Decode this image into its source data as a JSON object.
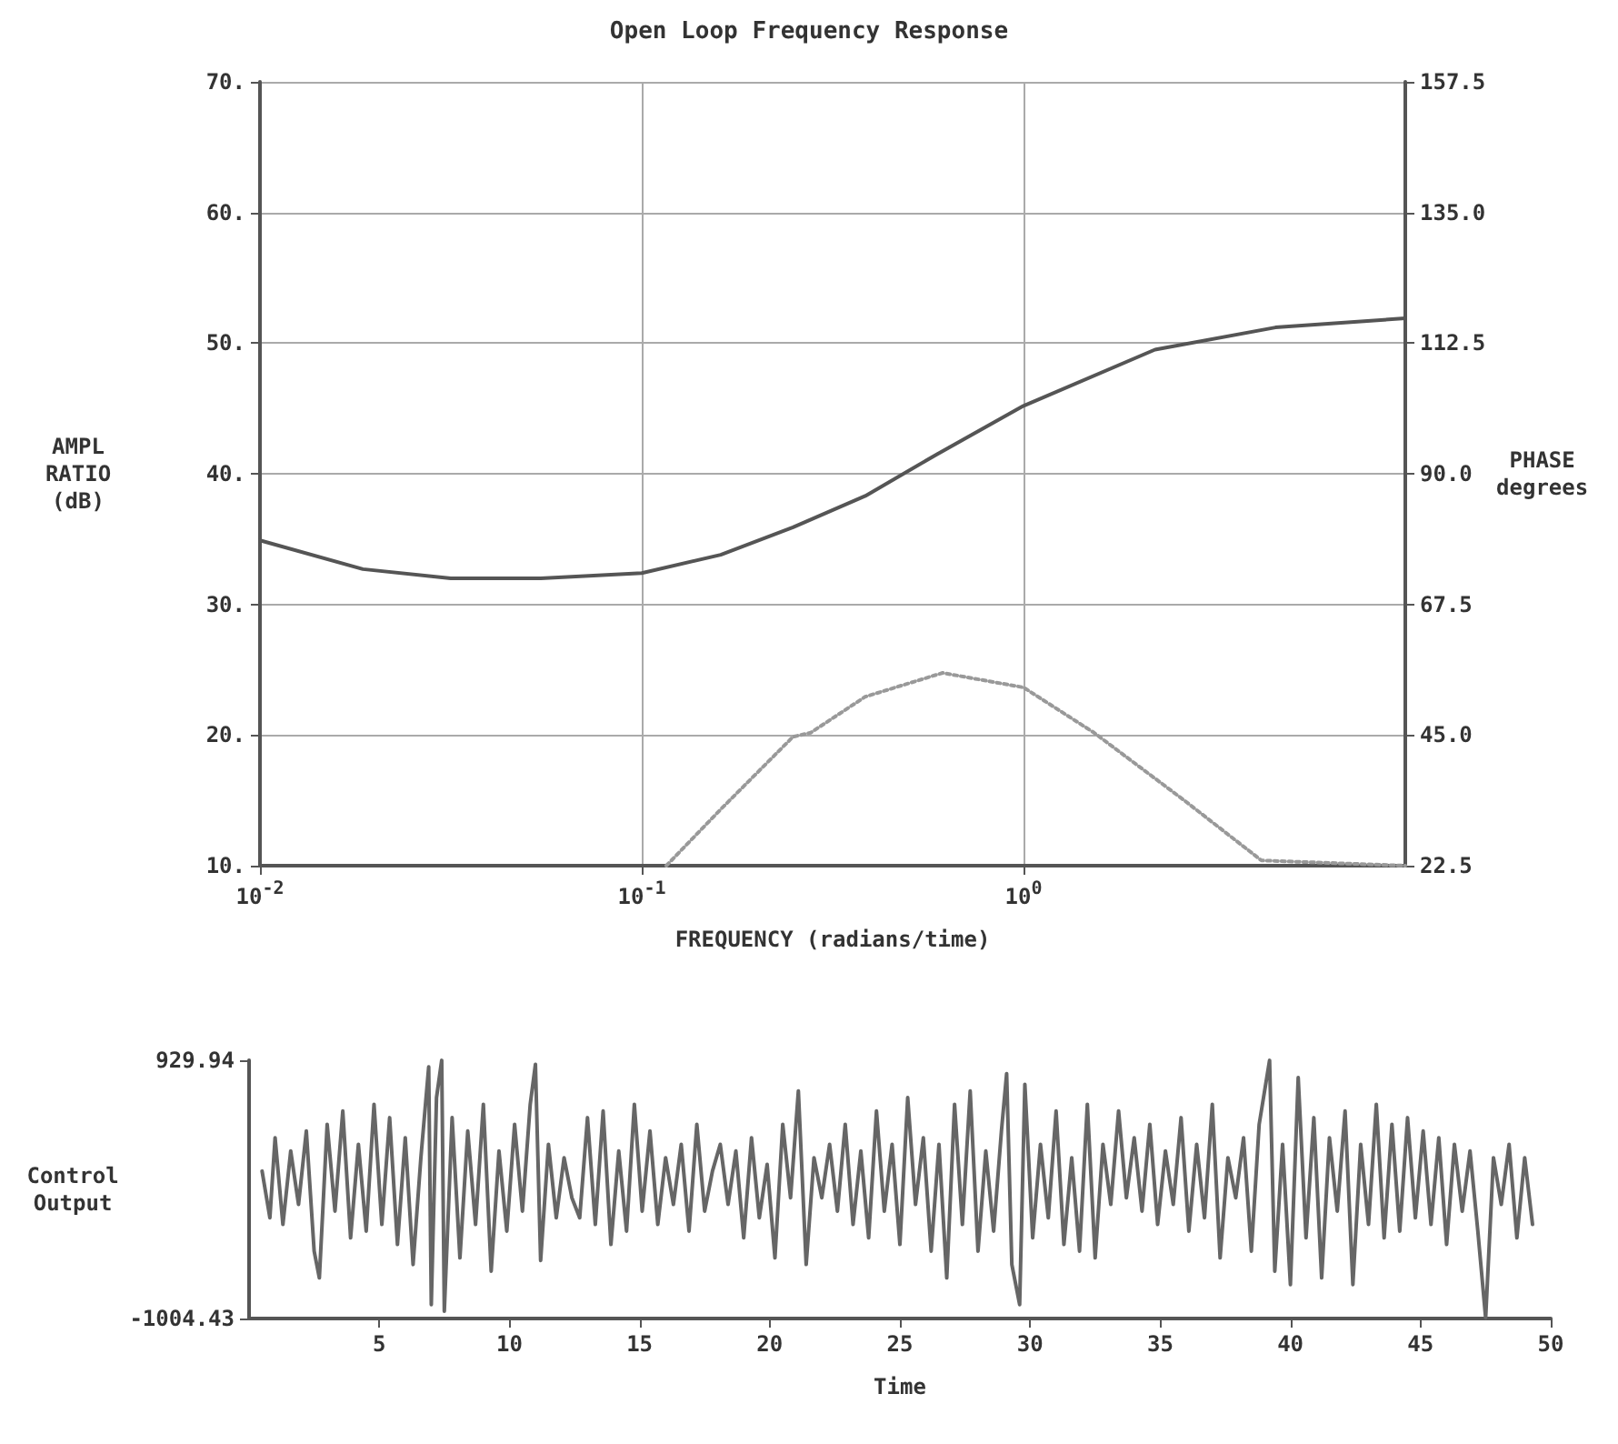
{
  "chart_data": [
    {
      "type": "line",
      "title": "Open Loop Frequency Response",
      "xlabel": "FREQUENCY (radians/time)",
      "ylabel": "AMPL\nRATIO\n(dB)",
      "y2label": "PHASE\ndegrees",
      "log": "x",
      "grid": true,
      "marker": "none",
      "xlim": [
        0.01,
        10
      ],
      "xticks": [
        {
          "value": 0.01,
          "label": "10$^{-2}$"
        },
        {
          "value": 0.1,
          "label": "10$^{-1}$"
        },
        {
          "value": 1,
          "label": "10$^{0}$"
        }
      ],
      "ylim": [
        10,
        70
      ],
      "yticks": [
        {
          "value": 10,
          "label": "10."
        },
        {
          "value": 20,
          "label": "20."
        },
        {
          "value": 30,
          "label": "30."
        },
        {
          "value": 40,
          "label": "40."
        },
        {
          "value": 50,
          "label": "50."
        },
        {
          "value": 60,
          "label": "60."
        },
        {
          "value": 70,
          "label": "70."
        }
      ],
      "y2lim": [
        22.5,
        157.5
      ],
      "y2ticks": [
        22.5,
        {
          "value": 45,
          "label": "45.0"
        },
        67.5,
        {
          "value": 90,
          "label": "90.0"
        },
        112.5,
        {
          "value": 135,
          "label": "135.0"
        },
        157.5
      ],
      "series": [
        {
          "color": "#555555",
          "line_style": "solid",
          "x": [
            0.01,
            0.0186,
            0.0316,
            0.0544,
            0.1,
            0.161,
            0.249,
            0.385,
            0.594,
            1,
            2.21,
            4.57,
            10
          ],
          "values": [
            34.9,
            32.7,
            32.0,
            32.0,
            32.4,
            33.8,
            35.9,
            38.3,
            41.5,
            45.2,
            49.5,
            51.2,
            51.9
          ]
        },
        {
          "color": "#999999",
          "line_style": "dotted",
          "axis": "y2",
          "x": [
            0.116,
            0.161,
            0.249,
            0.277,
            0.385,
            0.614,
            1,
            1.53,
            2.63,
            4.2,
            10
          ],
          "values": [
            22.5,
            32.2,
            44.7,
            45.4,
            51.6,
            55.7,
            53.2,
            45.4,
            33.8,
            23.4,
            22.5
          ]
        }
      ]
    },
    {
      "type": "line",
      "xlabel": "Time",
      "ylabel": "Control\nOutput",
      "marker": "none",
      "xlim": [
        0,
        50
      ],
      "xticks": [
        5,
        10,
        15,
        20,
        25,
        30,
        35,
        40,
        45,
        50
      ],
      "ylim": [
        -1004.43,
        929.94
      ],
      "yticks": [
        -1004.43,
        929.94
      ],
      "series": [
        {
          "color": "#666666",
          "line_style": "solid",
          "x": [
            0.5,
            0.8,
            1.0,
            1.3,
            1.6,
            1.9,
            2.2,
            2.5,
            2.7,
            3.0,
            3.3,
            3.6,
            3.9,
            4.2,
            4.5,
            4.8,
            5.1,
            5.4,
            5.7,
            6.0,
            6.3,
            6.6,
            6.9,
            7.0,
            7.2,
            7.4,
            7.5,
            7.8,
            8.1,
            8.4,
            8.7,
            9.0,
            9.3,
            9.6,
            9.9,
            10.2,
            10.5,
            10.8,
            11.0,
            11.2,
            11.5,
            11.8,
            12.1,
            12.4,
            12.7,
            13.0,
            13.3,
            13.6,
            13.9,
            14.2,
            14.5,
            14.8,
            15.1,
            15.4,
            15.7,
            16.0,
            16.3,
            16.6,
            16.9,
            17.2,
            17.5,
            17.8,
            18.1,
            18.4,
            18.7,
            19.0,
            19.3,
            19.6,
            19.9,
            20.2,
            20.5,
            20.8,
            21.1,
            21.4,
            21.7,
            22.0,
            22.3,
            22.6,
            22.9,
            23.2,
            23.5,
            23.8,
            24.1,
            24.4,
            24.7,
            25.0,
            25.3,
            25.6,
            25.9,
            26.2,
            26.5,
            26.8,
            27.1,
            27.4,
            27.7,
            28.0,
            28.3,
            28.6,
            28.9,
            29.1,
            29.3,
            29.6,
            29.8,
            30.1,
            30.4,
            30.7,
            31.0,
            31.3,
            31.6,
            31.9,
            32.2,
            32.5,
            32.8,
            33.1,
            33.4,
            33.7,
            34.0,
            34.3,
            34.6,
            34.9,
            35.2,
            35.5,
            35.8,
            36.1,
            36.4,
            36.7,
            37.0,
            37.3,
            37.6,
            37.9,
            38.2,
            38.5,
            38.8,
            39.2,
            39.4,
            39.7,
            40.0,
            40.3,
            40.6,
            40.9,
            41.2,
            41.5,
            41.8,
            42.1,
            42.4,
            42.7,
            43.0,
            43.3,
            43.6,
            43.9,
            44.2,
            44.5,
            44.8,
            45.1,
            45.4,
            45.7,
            46.0,
            46.3,
            46.6,
            46.9,
            47.2,
            47.5,
            47.8,
            48.1,
            48.4,
            48.7,
            49.0,
            49.3
          ],
          "values": [
            100,
            -250,
            350,
            -300,
            250,
            -150,
            400,
            -500,
            -700,
            450,
            -200,
            550,
            -400,
            300,
            -350,
            600,
            -300,
            500,
            -450,
            350,
            -600,
            200,
            880,
            -900,
            650,
            929,
            -950,
            500,
            -550,
            400,
            -300,
            600,
            -650,
            250,
            -350,
            450,
            -200,
            600,
            900,
            -570,
            300,
            -250,
            200,
            -100,
            -250,
            500,
            -300,
            550,
            -450,
            250,
            -350,
            600,
            -200,
            400,
            -300,
            200,
            -150,
            300,
            -350,
            450,
            -200,
            100,
            300,
            -150,
            250,
            -400,
            350,
            -250,
            150,
            -550,
            450,
            -100,
            700,
            -600,
            200,
            -100,
            300,
            -200,
            450,
            -300,
            250,
            -400,
            550,
            -200,
            300,
            -450,
            650,
            -150,
            350,
            -500,
            300,
            -700,
            600,
            -300,
            700,
            -500,
            250,
            -350,
            400,
            830,
            -600,
            -900,
            750,
            -400,
            300,
            -250,
            550,
            -450,
            200,
            -500,
            600,
            -550,
            300,
            -150,
            550,
            -100,
            350,
            -200,
            450,
            -300,
            250,
            -150,
            500,
            -350,
            300,
            -250,
            600,
            -550,
            200,
            -100,
            350,
            -500,
            450,
            929,
            -650,
            300,
            -750,
            800,
            -400,
            500,
            -700,
            350,
            -200,
            550,
            -750,
            300,
            -300,
            600,
            -400,
            450,
            -350,
            500,
            -250,
            400,
            -300,
            350,
            -450,
            300,
            -200,
            250,
            -350,
            -1000,
            200,
            -150,
            300,
            -400,
            200,
            -300
          ]
        }
      ]
    }
  ]
}
